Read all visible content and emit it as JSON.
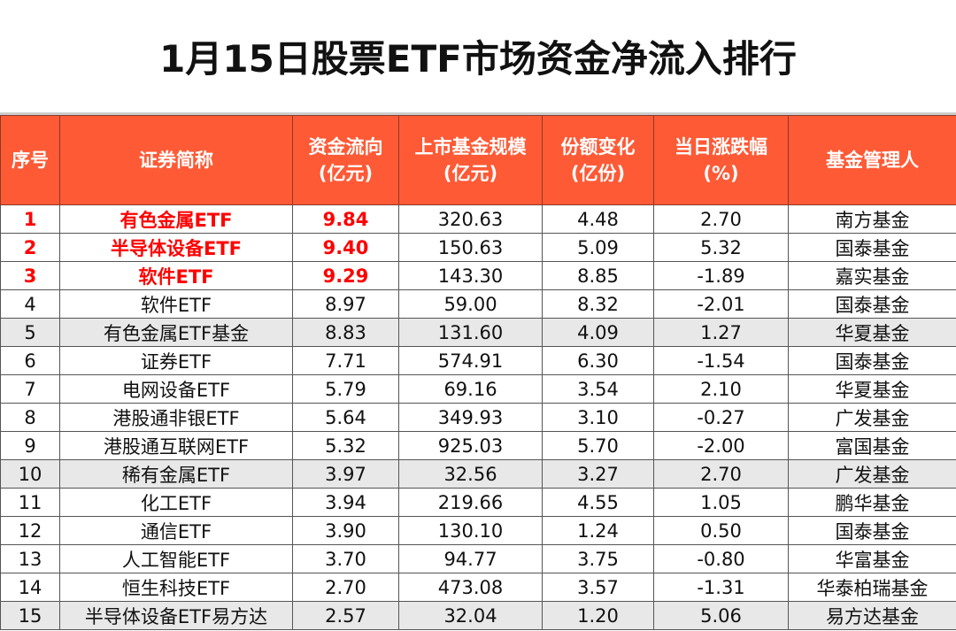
{
  "title": "1月15日股票ETF市场资金净流入排行",
  "headers": [
    "序号",
    "证券简称",
    "资金流向\n(亿元)",
    "上市基金规模\n(亿元)",
    "份额变化\n(亿份)",
    "当日涨跌幅\n(%)",
    "基金管理人"
  ],
  "highlight_color": "#ff0000",
  "header_color": "#ff5a36",
  "rows": [
    [
      "1",
      "有色金属ETF",
      "9.84",
      "320.63",
      "4.48",
      "2.70",
      "南方基金"
    ],
    [
      "2",
      "半导体设备ETF",
      "9.40",
      "150.63",
      "5.09",
      "5.32",
      "国泰基金"
    ],
    [
      "3",
      "软件ETF",
      "9.29",
      "143.30",
      "8.85",
      "-1.89",
      "嘉实基金"
    ],
    [
      "4",
      "软件ETF",
      "8.97",
      "59.00",
      "8.32",
      "-2.01",
      "国泰基金"
    ],
    [
      "5",
      "有色金属ETF基金",
      "8.83",
      "131.60",
      "4.09",
      "1.27",
      "华夏基金"
    ],
    [
      "6",
      "证券ETF",
      "7.71",
      "574.91",
      "6.30",
      "-1.54",
      "国泰基金"
    ],
    [
      "7",
      "电网设备ETF",
      "5.79",
      "69.16",
      "3.54",
      "2.10",
      "华夏基金"
    ],
    [
      "8",
      "港股通非银ETF",
      "5.64",
      "349.93",
      "3.10",
      "-0.27",
      "广发基金"
    ],
    [
      "9",
      "港股通互联网ETF",
      "5.32",
      "925.03",
      "5.70",
      "-2.00",
      "富国基金"
    ],
    [
      "10",
      "稀有金属ETF",
      "3.97",
      "32.56",
      "3.27",
      "2.70",
      "广发基金"
    ],
    [
      "11",
      "化工ETF",
      "3.94",
      "219.66",
      "4.55",
      "1.05",
      "鹏华基金"
    ],
    [
      "12",
      "通信ETF",
      "3.90",
      "130.10",
      "1.24",
      "0.50",
      "国泰基金"
    ],
    [
      "13",
      "人工智能ETF",
      "3.70",
      "94.77",
      "3.75",
      "-0.80",
      "华富基金"
    ],
    [
      "14",
      "恒生科技ETF",
      "2.70",
      "473.08",
      "3.57",
      "-1.31",
      "华泰柏瑞基金"
    ],
    [
      "15",
      "半导体设备ETF易方达",
      "2.57",
      "32.04",
      "1.20",
      "5.06",
      "易方达基金"
    ]
  ]
}
